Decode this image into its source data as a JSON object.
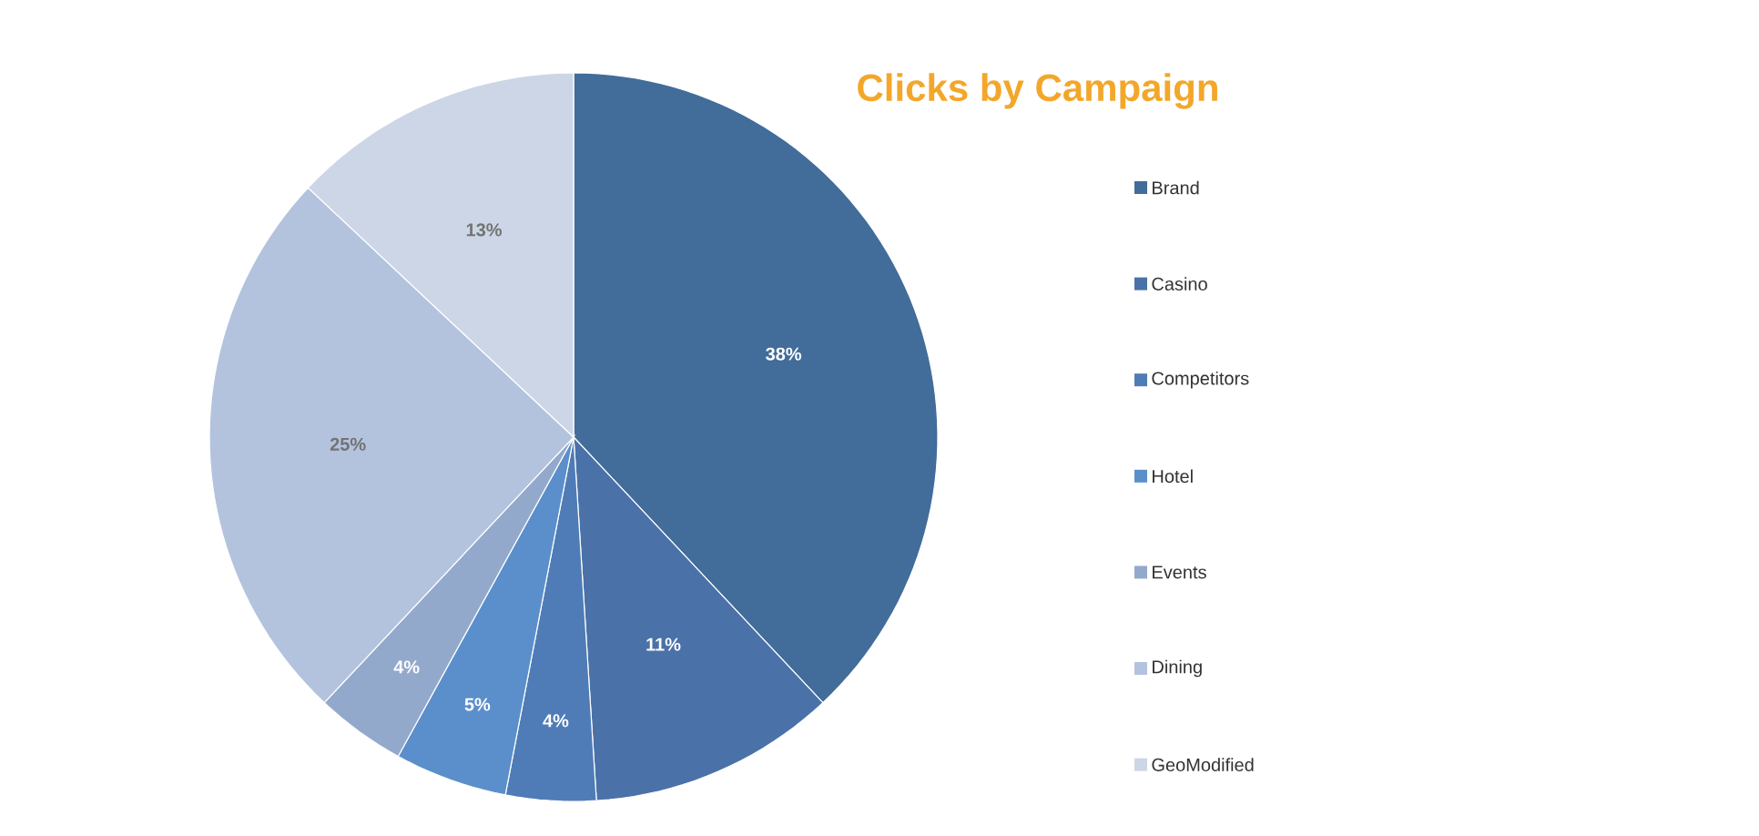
{
  "chart_data": {
    "type": "pie",
    "title": "Clicks by Campaign",
    "categories": [
      "Brand",
      "Casino",
      "Competitors",
      "Hotel",
      "Events",
      "Dining",
      "GeoModified"
    ],
    "values": [
      38,
      11,
      4,
      5,
      4,
      25,
      13
    ],
    "colors": [
      "#426c9a",
      "#4a72a8",
      "#4f7cb6",
      "#5b8fcb",
      "#93a9cc",
      "#b3c3de",
      "#ccd6e6"
    ],
    "value_labels": [
      "38%",
      "11%",
      "4%",
      "5%",
      "4%",
      "25%",
      "13%"
    ],
    "legend": "right"
  }
}
